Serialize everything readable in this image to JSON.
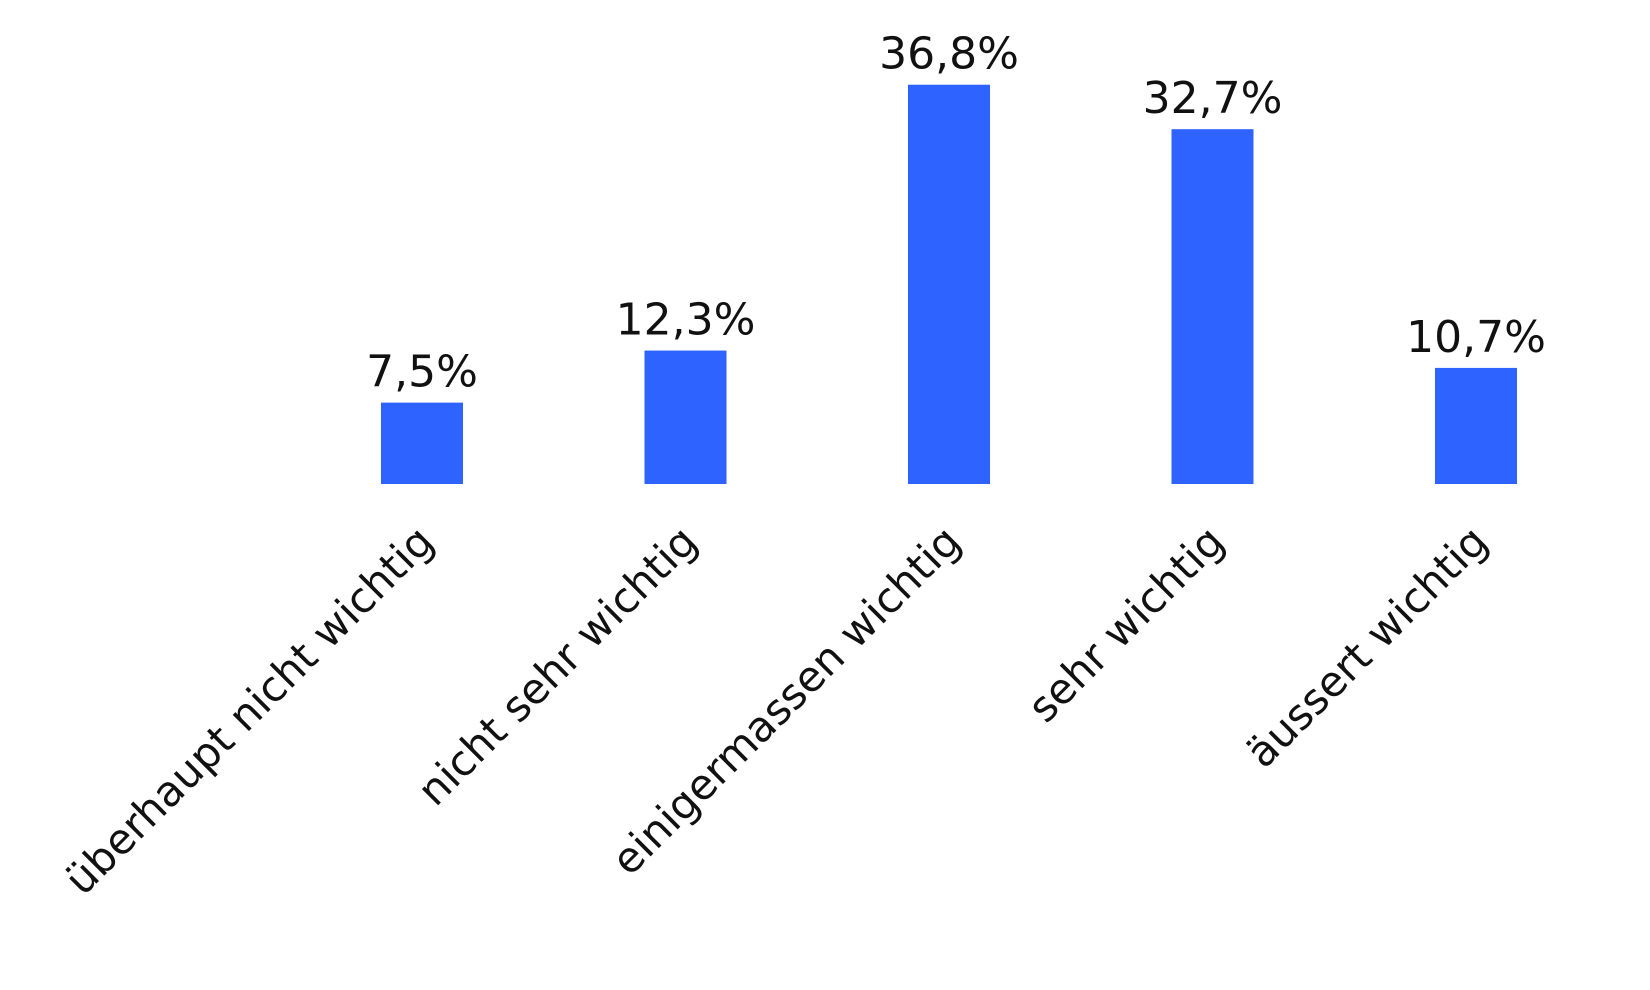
{
  "chart_data": {
    "type": "bar",
    "categories": [
      "überhaupt nicht wichtig",
      "nicht sehr wichtig",
      "einigermassen wichtig",
      "sehr wichtig",
      "äussert wichtig"
    ],
    "values": [
      7.5,
      12.3,
      36.8,
      32.7,
      10.7
    ],
    "value_labels": [
      "7,5%",
      "12,3%",
      "36,8%",
      "32,7%",
      "10,7%"
    ],
    "ylim": [
      0,
      40
    ],
    "bar_color": "#2e63ff",
    "grid": false,
    "legend": "none",
    "xlabel": "",
    "ylabel": "",
    "title": ""
  }
}
